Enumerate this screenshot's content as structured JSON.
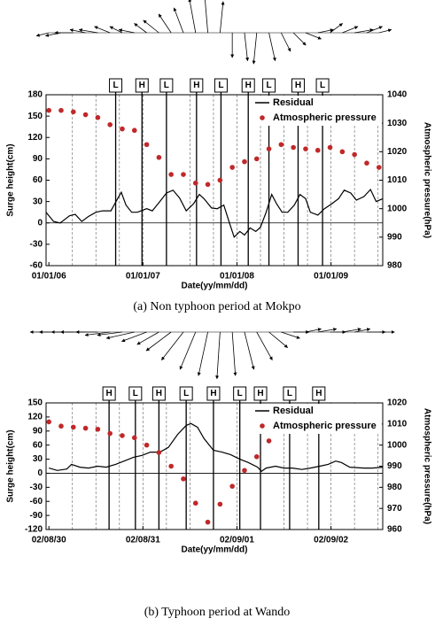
{
  "chart_data": [
    {
      "type": "line",
      "caption": "(a) Non typhoon period at Mokpo",
      "xlabel": "Date(yy/mm/dd)",
      "ylabel": "Surge height(cm)",
      "y2label": "Atmospheric pressure(hPa)",
      "legend": "upper right",
      "xlim": [
        -0.03,
        3.55
      ],
      "xticks": [
        {
          "value": 0,
          "label": "01/01/06"
        },
        {
          "value": 1,
          "label": "01/01/07"
        },
        {
          "value": 2,
          "label": "01/01/08"
        },
        {
          "value": 3,
          "label": "01/01/09"
        }
      ],
      "xgrid": [
        0.25,
        0.5,
        0.75,
        1,
        1.25,
        1.5,
        1.75,
        2,
        2.25,
        2.5,
        2.75,
        3,
        3.25,
        3.5
      ],
      "ylim": [
        -60,
        180
      ],
      "yticks": [
        -60,
        -30,
        0,
        30,
        60,
        90,
        120,
        150,
        180
      ],
      "y2lim": [
        980,
        1040
      ],
      "y2ticks": [
        980,
        990,
        1000,
        1010,
        1020,
        1030,
        1040
      ],
      "series": [
        {
          "name": "Residual",
          "color": "#000000",
          "axis": "y",
          "x": [
            -0.03,
            0.05,
            0.12,
            0.22,
            0.28,
            0.35,
            0.42,
            0.5,
            0.57,
            0.66,
            0.73,
            0.77,
            0.82,
            0.88,
            0.94,
            1.04,
            1.1,
            1.18,
            1.25,
            1.32,
            1.39,
            1.46,
            1.54,
            1.6,
            1.65,
            1.73,
            1.79,
            1.86,
            1.92,
            1.97,
            2.03,
            2.08,
            2.14,
            2.2,
            2.25,
            2.31,
            2.37,
            2.42,
            2.48,
            2.54,
            2.61,
            2.67,
            2.73,
            2.78,
            2.86,
            2.93,
            3.01,
            3.08,
            3.14,
            3.21,
            3.27,
            3.35,
            3.42,
            3.48,
            3.55
          ],
          "values": [
            15,
            2,
            0,
            10,
            12,
            2,
            9,
            15,
            17,
            17,
            34,
            43,
            25,
            15,
            15,
            20,
            17,
            30,
            42,
            46,
            35,
            17,
            27,
            40,
            34,
            21,
            20,
            25,
            0,
            -20,
            -12,
            -17,
            -7,
            -12,
            -6,
            15,
            40,
            27,
            15,
            15,
            25,
            40,
            34,
            15,
            11,
            20,
            27,
            34,
            46,
            42,
            32,
            37,
            47,
            30,
            34
          ]
        },
        {
          "name": "Atmospheric pressure",
          "color": "#c0282a",
          "axis": "y2",
          "marker": "dot",
          "x": [
            0,
            0.13,
            0.26,
            0.39,
            0.52,
            0.65,
            0.78,
            0.91,
            1.04,
            1.17,
            1.3,
            1.43,
            1.56,
            1.69,
            1.82,
            1.95,
            2.08,
            2.21,
            2.34,
            2.47,
            2.6,
            2.73,
            2.86,
            2.99,
            3.12,
            3.25,
            3.38,
            3.51
          ],
          "values": [
            1034.5,
            1034.5,
            1034,
            1033,
            1032,
            1029.5,
            1028,
            1027.5,
            1022.5,
            1018,
            1012,
            1012,
            1009,
            1008.5,
            1010,
            1014.5,
            1016.5,
            1017.5,
            1021,
            1022.5,
            1021.5,
            1021,
            1020.5,
            1021.5,
            1020,
            1019,
            1016,
            1014.5
          ]
        }
      ],
      "tide_events": [
        {
          "label": "L",
          "x": 0.71
        },
        {
          "label": "H",
          "x": 0.99
        },
        {
          "label": "L",
          "x": 1.25
        },
        {
          "label": "H",
          "x": 1.57
        },
        {
          "label": "L",
          "x": 1.83
        },
        {
          "label": "H",
          "x": 2.12
        },
        {
          "label": "L",
          "x": 2.34
        },
        {
          "label": "H",
          "x": 2.65
        },
        {
          "label": "L",
          "x": 2.91
        }
      ],
      "wind": {
        "x": [
          0,
          0.13,
          0.26,
          0.39,
          0.52,
          0.65,
          0.78,
          0.91,
          1.04,
          1.17,
          1.3,
          1.43,
          1.56,
          1.69,
          1.82,
          1.95,
          2.08,
          2.21,
          2.34,
          2.47,
          2.6,
          2.73,
          2.86,
          2.99,
          3.12,
          3.25,
          3.38,
          3.51
        ],
        "u": [
          -4,
          -5,
          -6,
          -5,
          -6,
          -5,
          -4,
          -5,
          -4,
          -5,
          -4,
          -3,
          -2,
          -1,
          1,
          0,
          1,
          -1,
          2,
          3,
          4,
          5,
          5,
          4,
          5,
          6,
          5,
          4
        ],
        "v": [
          -1,
          -1,
          0,
          1,
          1,
          2,
          2,
          1,
          3,
          4,
          6,
          8,
          11,
          12,
          10,
          -8,
          -9,
          -10,
          -9,
          -6,
          -4,
          -2,
          1,
          3,
          2,
          1,
          2,
          1
        ]
      }
    },
    {
      "type": "line",
      "caption": "(b) Typhoon period at Wando",
      "xlabel": "Date(yy/mm/dd)",
      "ylabel": "Surge height(cm)",
      "y2label": "Atmospheric pressure(hPa)",
      "legend": "upper right",
      "xlim": [
        -0.03,
        3.55
      ],
      "xticks": [
        {
          "value": 0,
          "label": "02/08/30"
        },
        {
          "value": 1,
          "label": "02/08/31"
        },
        {
          "value": 2,
          "label": "02/09/01"
        },
        {
          "value": 3,
          "label": "02/09/02"
        }
      ],
      "xgrid": [
        0.25,
        0.5,
        0.75,
        1,
        1.25,
        1.5,
        1.75,
        2,
        2.25,
        2.5,
        2.75,
        3,
        3.25,
        3.5
      ],
      "ylim": [
        -120,
        150
      ],
      "yticks": [
        -120,
        -90,
        -60,
        -30,
        0,
        30,
        60,
        90,
        120,
        150
      ],
      "y2lim": [
        960,
        1020
      ],
      "y2ticks": [
        960,
        970,
        980,
        990,
        1000,
        1010,
        1020
      ],
      "series": [
        {
          "name": "Residual",
          "color": "#000000",
          "axis": "y",
          "x": [
            0,
            0.09,
            0.19,
            0.24,
            0.33,
            0.42,
            0.52,
            0.61,
            0.71,
            0.8,
            0.9,
            0.99,
            1.08,
            1.18,
            1.27,
            1.37,
            1.46,
            1.51,
            1.58,
            1.65,
            1.75,
            1.84,
            1.93,
            2.03,
            2.12,
            2.22,
            2.26,
            2.31,
            2.41,
            2.5,
            2.59,
            2.69,
            2.78,
            2.88,
            2.97,
            3.05,
            3.11,
            3.2,
            3.35,
            3.44,
            3.55
          ],
          "values": [
            11,
            6,
            9,
            19,
            13,
            11,
            15,
            13,
            19,
            26,
            34,
            38,
            45,
            45,
            55,
            83,
            102,
            106,
            98,
            74,
            49,
            45,
            40,
            30,
            23,
            13,
            4,
            11,
            15,
            11,
            11,
            8,
            11,
            15,
            19,
            26,
            23,
            13,
            11,
            11,
            13
          ]
        },
        {
          "name": "Atmospheric pressure",
          "color": "#c0282a",
          "axis": "y2",
          "marker": "dot",
          "x": [
            0,
            0.13,
            0.26,
            0.39,
            0.52,
            0.65,
            0.78,
            0.91,
            1.04,
            1.17,
            1.3,
            1.43,
            1.56,
            1.69,
            1.82,
            1.95,
            2.08,
            2.21,
            2.34,
            2.47,
            2.6,
            2.73,
            2.86,
            2.99
          ],
          "values": [
            1011,
            1009,
            1008.5,
            1008,
            1007.5,
            1005.5,
            1004.5,
            1003.5,
            1000,
            996.5,
            990,
            984,
            972.5,
            963.5,
            972,
            980.5,
            988,
            994.5,
            1002,
            1007,
            1010.5,
            1011,
            1012.5,
            1016
          ]
        }
      ],
      "tide_events": [
        {
          "label": "H",
          "x": 0.64
        },
        {
          "label": "L",
          "x": 0.92
        },
        {
          "label": "H",
          "x": 1.17
        },
        {
          "label": "L",
          "x": 1.46
        },
        {
          "label": "H",
          "x": 1.75
        },
        {
          "label": "L",
          "x": 2.03
        },
        {
          "label": "H",
          "x": 2.25
        },
        {
          "label": "L",
          "x": 2.56
        },
        {
          "label": "H",
          "x": 2.87
        }
      ],
      "wind": {
        "x": [
          0,
          0.13,
          0.26,
          0.39,
          0.52,
          0.65,
          0.78,
          0.91,
          1.04,
          1.17,
          1.3,
          1.43,
          1.56,
          1.69,
          1.82,
          1.95,
          2.08,
          2.21,
          2.34,
          2.47,
          2.6,
          2.73,
          2.86,
          2.99,
          3.12,
          3.25,
          3.38,
          3.51
        ],
        "u": [
          -6,
          -7,
          -7,
          -8,
          -7,
          -8,
          -8,
          -9,
          -8,
          -7,
          -8,
          -7,
          -5,
          -3,
          -1,
          1,
          3,
          5,
          6,
          6,
          5,
          5,
          6,
          5,
          6,
          5,
          6,
          5
        ],
        "v": [
          0,
          0,
          0,
          0,
          0,
          -1,
          -1,
          -2,
          -3,
          -4,
          -6,
          -9,
          -12,
          -14,
          -15,
          -14,
          -12,
          -9,
          -5,
          -2,
          0,
          1,
          1,
          0,
          1,
          1,
          0,
          0
        ]
      }
    }
  ]
}
